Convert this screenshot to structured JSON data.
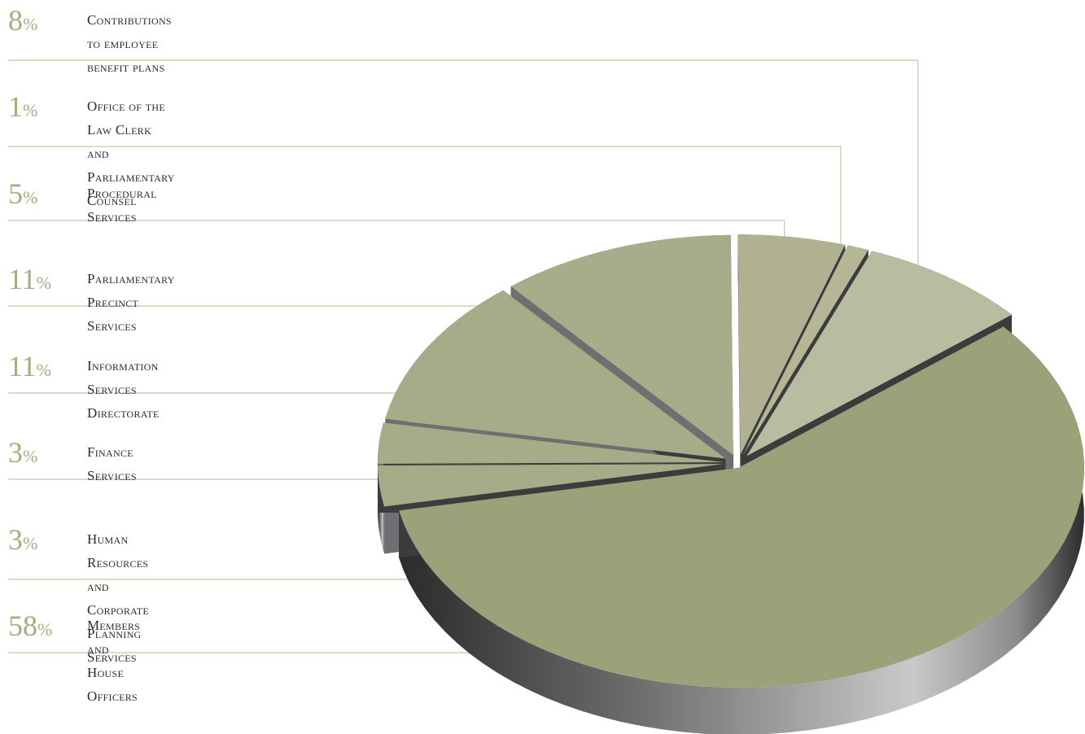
{
  "chart_data": {
    "type": "pie",
    "style": "3d-exploded",
    "legend": "left",
    "slices": [
      {
        "label": "Members and House Officers",
        "percent_label": "58",
        "value": 58,
        "color": "#9ba178"
      },
      {
        "label": "Human Resources and\nCorporate Planning Services",
        "percent_label": "3",
        "value": 3,
        "color": "#a7ab88"
      },
      {
        "label": "Finance Services",
        "percent_label": "3",
        "value": 3,
        "color": "#a7ab88"
      },
      {
        "label": "Information Services Directorate",
        "percent_label": "11",
        "value": 11,
        "color": "#a7ab88"
      },
      {
        "label": "Parliamentary Precinct Services",
        "percent_label": "11",
        "value": 11,
        "color": "#a9ac8a"
      },
      {
        "label": "Procedural Services",
        "percent_label": "5",
        "value": 5,
        "color": "#b0b190"
      },
      {
        "label": "Office of the Law Clerk and\nParliamentary Counsel",
        "percent_label": "1",
        "value": 1,
        "color": "#b4b694"
      },
      {
        "label": "Contributions to employee\nbenefit plans",
        "percent_label": "8",
        "value": 8,
        "color": "#b9bc9f"
      }
    ],
    "percent_symbol": "%",
    "colors": {
      "label_percent": "#a2ae7d",
      "leader_line": "#c3c9a6",
      "side_dark": "#3a3a3a",
      "side_light": "#c7c7c7"
    }
  }
}
